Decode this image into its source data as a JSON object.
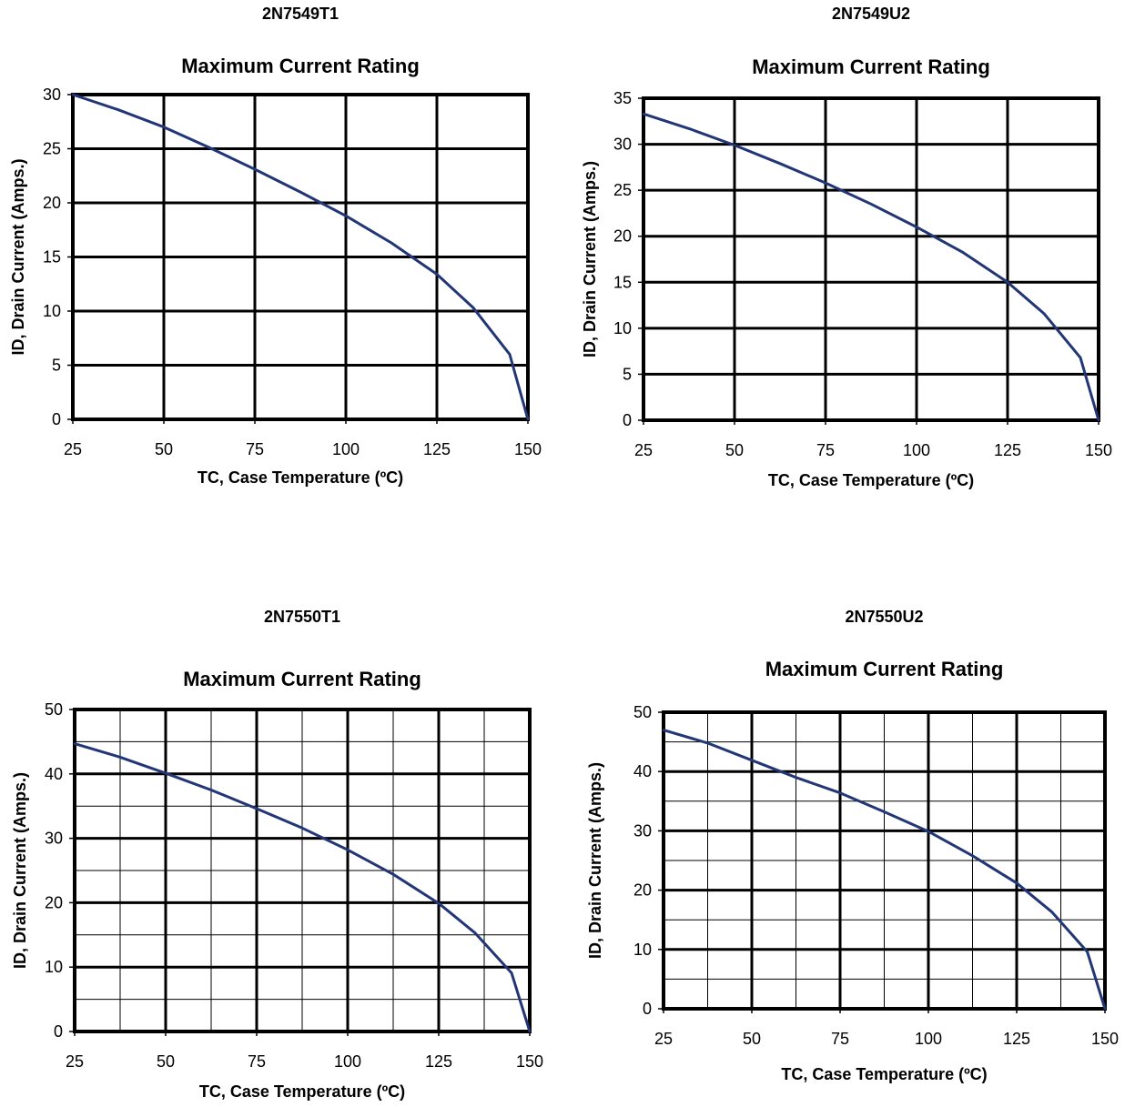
{
  "chart_data": [
    {
      "type": "line",
      "part_number": "2N7549T1",
      "title": "Maximum Current Rating",
      "xlabel": "TC, Case Temperature (ºC)",
      "ylabel": "ID, Drain Current (Amps.)",
      "xlim": [
        25,
        150
      ],
      "ylim": [
        0,
        30
      ],
      "xticks": [
        25,
        50,
        75,
        100,
        125,
        150
      ],
      "yticks": [
        0,
        5,
        10,
        15,
        20,
        25,
        30
      ],
      "minor_grid": false,
      "x": [
        25,
        37.5,
        50,
        62.5,
        75,
        87.5,
        100,
        112.5,
        125,
        135,
        145,
        150
      ],
      "y": [
        30,
        28.6,
        27,
        25.1,
        23.1,
        21,
        18.8,
        16.3,
        13.4,
        10.3,
        6,
        0
      ],
      "color": "#1a3a7a"
    },
    {
      "type": "line",
      "part_number": "2N7549U2",
      "title": "Maximum Current Rating",
      "xlabel": "TC, Case Temperature (ºC)",
      "ylabel": "ID, Drain Current (Amps.)",
      "xlim": [
        25,
        150
      ],
      "ylim": [
        0,
        35
      ],
      "xticks": [
        25,
        50,
        75,
        100,
        125,
        150
      ],
      "yticks": [
        0,
        5,
        10,
        15,
        20,
        25,
        30,
        35
      ],
      "minor_grid": false,
      "x": [
        25,
        37.5,
        50,
        62.5,
        75,
        87.5,
        100,
        112.5,
        125,
        135,
        145,
        150
      ],
      "y": [
        33.3,
        31.7,
        29.9,
        27.9,
        25.8,
        23.5,
        21,
        18.3,
        15,
        11.6,
        6.8,
        0
      ],
      "color": "#1a3a7a"
    },
    {
      "type": "line",
      "part_number": "2N7550T1",
      "title": "Maximum Current Rating",
      "xlabel": "TC, Case Temperature (ºC)",
      "ylabel": "ID, Drain Current (Amps.)",
      "xlim": [
        25,
        150
      ],
      "ylim": [
        0,
        50
      ],
      "xticks": [
        25,
        50,
        75,
        100,
        125,
        150
      ],
      "yticks": [
        0,
        10,
        20,
        30,
        40,
        50
      ],
      "minor_grid": true,
      "x": [
        25,
        37.5,
        50,
        62.5,
        75,
        87.5,
        100,
        112.5,
        125,
        135,
        145,
        150
      ],
      "y": [
        44.7,
        42.6,
        40.1,
        37.5,
        34.6,
        31.6,
        28.2,
        24.4,
        19.9,
        15.3,
        9.1,
        0
      ],
      "color": "#1a3a7a"
    },
    {
      "type": "line",
      "part_number": "2N7550U2",
      "title": "Maximum Current Rating",
      "xlabel": "TC, Case Temperature (ºC)",
      "ylabel": "ID, Drain Current (Amps.)",
      "xlim": [
        25,
        150
      ],
      "ylim": [
        0,
        50
      ],
      "xticks": [
        25,
        50,
        75,
        100,
        125,
        150
      ],
      "yticks": [
        0,
        10,
        20,
        30,
        40,
        50
      ],
      "minor_grid": true,
      "x": [
        25,
        37.5,
        50,
        62.5,
        75,
        87.5,
        100,
        112.5,
        125,
        135,
        145,
        150
      ],
      "y": [
        47,
        44.8,
        41.9,
        39,
        36.4,
        33.2,
        29.9,
        25.8,
        21.2,
        16.3,
        9.6,
        0
      ],
      "color": "#1a3a7a"
    }
  ]
}
